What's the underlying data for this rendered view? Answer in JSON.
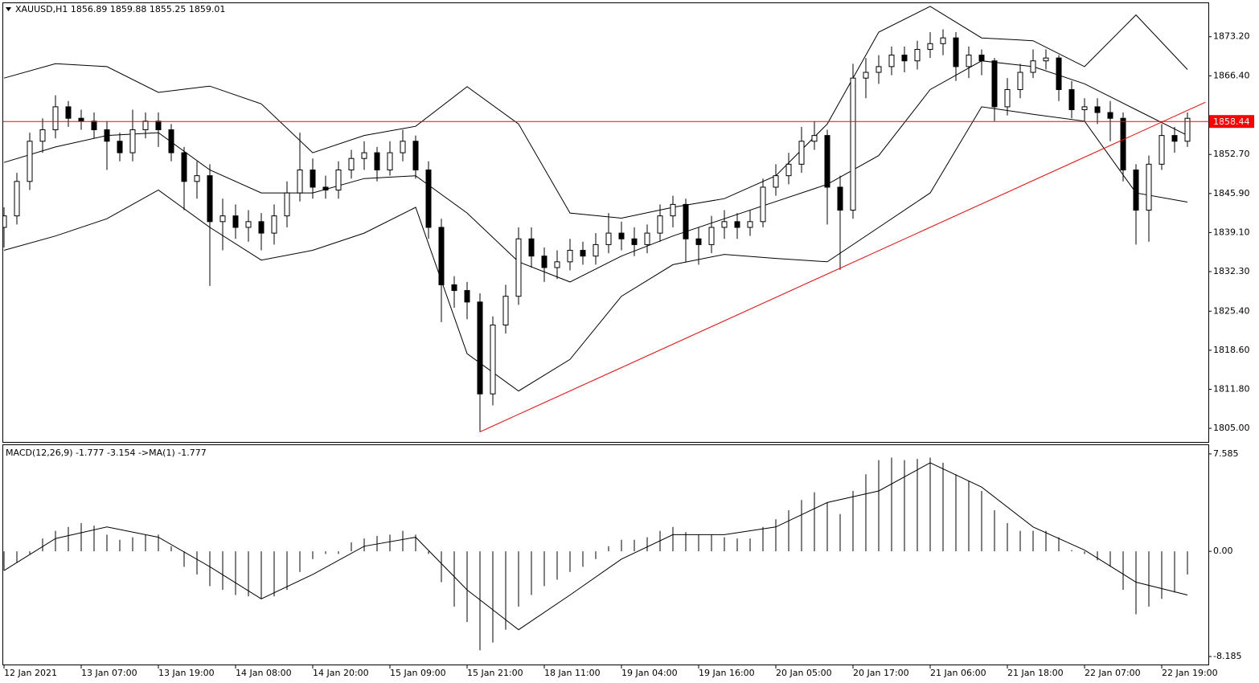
{
  "chart_data": [
    {
      "type": "candlestick",
      "title": "XAUUSD,H1  1856.89 1859.88 1855.25 1859.01",
      "open": [
        1840,
        1842,
        1848,
        1855,
        1857,
        1861,
        1859,
        1858.5,
        1857,
        1855,
        1853,
        1857,
        1858.5,
        1857,
        1853,
        1848,
        1849,
        1841,
        1842,
        1840,
        1841,
        1839,
        1842,
        1846,
        1850,
        1847,
        1846.5,
        1850,
        1852,
        1853,
        1850,
        1853,
        1855,
        1850,
        1840,
        1830,
        1829,
        1827,
        1811,
        1823,
        1828,
        1838,
        1835,
        1833,
        1834,
        1836,
        1835,
        1837,
        1839,
        1838,
        1837,
        1839,
        1842,
        1844,
        1838,
        1837,
        1840,
        1841,
        1840,
        1841,
        1847,
        1849,
        1851,
        1855,
        1856,
        1847,
        1843,
        1866,
        1867,
        1868,
        1870,
        1869,
        1871,
        1872,
        1873,
        1868,
        1870,
        1869,
        1861,
        1864,
        1867,
        1869,
        1869.5,
        1864,
        1860.5,
        1861,
        1860,
        1859,
        1850,
        1843,
        1851,
        1856,
        1855
      ],
      "high": [
        1843.5,
        1849.5,
        1856.5,
        1859,
        1863,
        1862,
        1860.5,
        1860,
        1858.5,
        1856.5,
        1860.5,
        1860,
        1860,
        1858,
        1854,
        1851.5,
        1851,
        1845,
        1844,
        1843,
        1842.5,
        1844,
        1848,
        1856.5,
        1852,
        1849,
        1851.5,
        1853.5,
        1855,
        1854,
        1855,
        1857,
        1856,
        1851.5,
        1841.5,
        1831.5,
        1830.5,
        1828.5,
        1824.5,
        1830,
        1840,
        1840,
        1836.5,
        1836,
        1838,
        1837.5,
        1839,
        1842.5,
        1841,
        1840,
        1840.5,
        1844,
        1845.5,
        1845,
        1840,
        1842,
        1843,
        1842.5,
        1843,
        1848.5,
        1851,
        1853,
        1857.5,
        1858.5,
        1857,
        1849,
        1868.5,
        1869.5,
        1870,
        1871.5,
        1871.5,
        1872.5,
        1874,
        1874.5,
        1874,
        1871.5,
        1871,
        1869.5,
        1866,
        1868.5,
        1871,
        1871,
        1870,
        1865.5,
        1862.5,
        1862.5,
        1862,
        1860,
        1851,
        1852.5,
        1858,
        1857.5,
        1860
      ],
      "low": [
        1836.5,
        1840.5,
        1846.5,
        1853,
        1855.5,
        1857.5,
        1857,
        1855.5,
        1850,
        1851.5,
        1851.5,
        1855.5,
        1854,
        1851.5,
        1843,
        1845,
        1829.8,
        1836,
        1838,
        1837.5,
        1836,
        1837,
        1840,
        1844.5,
        1845,
        1845,
        1845,
        1848.5,
        1850,
        1848,
        1849,
        1851.5,
        1848.5,
        1838,
        1823.5,
        1826,
        1824,
        1804.4,
        1809,
        1821.5,
        1826.5,
        1833,
        1830.5,
        1831,
        1832.5,
        1833.5,
        1833.5,
        1835.5,
        1836,
        1835,
        1835.5,
        1837.5,
        1840,
        1834,
        1833.5,
        1835.5,
        1838,
        1838,
        1838.5,
        1840,
        1845.5,
        1847.5,
        1849.5,
        1853.5,
        1840.5,
        1832.6,
        1841.5,
        1862.5,
        1865,
        1866.5,
        1867,
        1867.5,
        1869.5,
        1870,
        1865.5,
        1866,
        1866.5,
        1858.5,
        1859.5,
        1862.5,
        1866,
        1867.5,
        1862,
        1859,
        1858.5,
        1858,
        1855,
        1848,
        1837,
        1837.5,
        1850,
        1853,
        1854
      ],
      "close": [
        1842,
        1848,
        1855,
        1857,
        1861,
        1859,
        1858.5,
        1857,
        1855,
        1853,
        1857,
        1858.5,
        1857,
        1853,
        1848,
        1849,
        1841,
        1842,
        1840,
        1841,
        1839,
        1842,
        1846,
        1850,
        1847,
        1846.5,
        1850,
        1852,
        1853,
        1850,
        1853,
        1855,
        1850,
        1840,
        1830,
        1829,
        1827,
        1811,
        1823,
        1828,
        1838,
        1835,
        1833,
        1834,
        1836,
        1835,
        1837,
        1839,
        1838,
        1837,
        1839,
        1842,
        1844,
        1838,
        1837,
        1840,
        1841,
        1840,
        1841,
        1847,
        1849,
        1851,
        1855,
        1856,
        1847,
        1843,
        1866,
        1867,
        1868,
        1870,
        1869,
        1871,
        1872,
        1873,
        1868,
        1870,
        1869,
        1861,
        1864,
        1867,
        1869,
        1869.5,
        1864,
        1860.5,
        1861,
        1860,
        1859,
        1850,
        1843,
        1851,
        1856,
        1855,
        1859
      ],
      "up_color": "#ffffff",
      "down_color": "#000000",
      "bands_x": [
        0,
        4,
        8,
        12,
        16,
        20,
        24,
        28,
        32,
        36,
        40,
        44,
        48,
        52,
        56,
        60,
        64,
        68,
        72,
        76,
        80,
        84,
        88,
        92
      ],
      "band_upper": [
        1866,
        1868.5,
        1868,
        1863.5,
        1864.6,
        1861.5,
        1853,
        1856,
        1857.6,
        1864.5,
        1858,
        1842.5,
        1841.6,
        1843.5,
        1845,
        1849,
        1858,
        1874,
        1878.5,
        1873,
        1872.5,
        1868,
        1877,
        1867.5
      ],
      "band_middle": [
        1851.3,
        1854,
        1856,
        1856.5,
        1850,
        1846,
        1846,
        1848.5,
        1849,
        1842.5,
        1834,
        1830.5,
        1835,
        1838.5,
        1841.5,
        1844.5,
        1847.5,
        1852.5,
        1864,
        1869,
        1868,
        1865,
        1860.5,
        1856
      ],
      "band_lower": [
        1836,
        1838.5,
        1841.5,
        1846.5,
        1840,
        1834.3,
        1836,
        1839,
        1843.5,
        1818,
        1811.5,
        1817,
        1828,
        1833.5,
        1835.3,
        1834.6,
        1834,
        1840,
        1846,
        1861,
        1859.7,
        1858.5,
        1846,
        1844.4
      ],
      "bands_color": "#000000",
      "trendline": {
        "x": [
          37,
          93.4
        ],
        "values": [
          1804.4,
          1861.8
        ],
        "color": "#ff0000"
      },
      "last_price": 1858.44,
      "last_price_color": "#ff0000",
      "xlim": [
        -0.125,
        93.625
      ],
      "ylim": [
        1802.63,
        1879.18
      ],
      "yticks": [
        {
          "value": 1873.2,
          "label": "1873.20"
        },
        {
          "value": 1866.4,
          "label": "1866.40"
        },
        {
          "value": 1852.7,
          "label": "1852.70"
        },
        {
          "value": 1845.9,
          "label": "1845.90"
        },
        {
          "value": 1839.1,
          "label": "1839.10"
        },
        {
          "value": 1832.3,
          "label": "1832.30"
        },
        {
          "value": 1825.4,
          "label": "1825.40"
        },
        {
          "value": 1818.6,
          "label": "1818.60"
        },
        {
          "value": 1811.8,
          "label": "1811.80"
        },
        {
          "value": 1805,
          "label": "1805.00"
        }
      ],
      "xticks": [
        {
          "value": 0,
          "label": "12 Jan 2021"
        },
        {
          "value": 6,
          "label": "13 Jan 07:00"
        },
        {
          "value": 12,
          "label": "13 Jan 19:00"
        },
        {
          "value": 18,
          "label": "14 Jan 08:00"
        },
        {
          "value": 24,
          "label": "14 Jan 20:00"
        },
        {
          "value": 30,
          "label": "15 Jan 09:00"
        },
        {
          "value": 36,
          "label": "15 Jan 21:00"
        },
        {
          "value": 42,
          "label": "18 Jan 11:00"
        },
        {
          "value": 48,
          "label": "19 Jan 04:00"
        },
        {
          "value": 54,
          "label": "19 Jan 16:00"
        },
        {
          "value": 60,
          "label": "20 Jan 05:00"
        },
        {
          "value": 66,
          "label": "20 Jan 17:00"
        },
        {
          "value": 72,
          "label": "21 Jan 06:00"
        },
        {
          "value": 78,
          "label": "21 Jan 18:00"
        },
        {
          "value": 84,
          "label": "22 Jan 07:00"
        },
        {
          "value": 90,
          "label": "22 Jan 19:00"
        }
      ]
    },
    {
      "type": "macd",
      "title": "MACD(12,26,9) -1.777 -3.154  ->MA(1) -1.777",
      "values": [
        -1.5,
        -0.9,
        -0.2,
        1,
        1.6,
        1.9,
        2.2,
        2,
        1.3,
        0.9,
        1.1,
        1.3,
        1.3,
        0.4,
        -1.2,
        -1.8,
        -2.7,
        -3,
        -3.4,
        -3.5,
        -3.7,
        -3.5,
        -3,
        -1.6,
        -0.6,
        -0.2,
        -0.2,
        0.7,
        1,
        1.2,
        1.3,
        1.6,
        1.3,
        -0.2,
        -2.4,
        -4.3,
        -5.5,
        -7.7,
        -7.1,
        -6.1,
        -4.3,
        -3.4,
        -2.7,
        -2.2,
        -1.6,
        -1.2,
        -0.6,
        0.4,
        0.9,
        0.9,
        1.1,
        1.6,
        1.9,
        1.5,
        1.3,
        1.3,
        1.1,
        1,
        1,
        1.9,
        2.5,
        3.2,
        4,
        4.6,
        3.8,
        2.9,
        4.7,
        6,
        7.1,
        7.3,
        7.1,
        7.2,
        7.3,
        6.9,
        6,
        5.5,
        4.7,
        3.2,
        2.2,
        1.6,
        1.6,
        1.6,
        1.1,
        0.1,
        -0.2,
        -0.7,
        -1.2,
        -3,
        -4.9,
        -4.3,
        -3.7,
        -3.2,
        -1.8
      ],
      "color": "#000000",
      "signal_x": [
        0,
        4,
        8,
        12,
        16,
        20,
        24,
        28,
        32,
        36,
        40,
        44,
        48,
        52,
        56,
        60,
        64,
        68,
        72,
        76,
        80,
        84,
        88,
        92
      ],
      "signal": [
        -1.5,
        1,
        1.9,
        1.1,
        -1.2,
        -3.7,
        -1.8,
        0.4,
        1.1,
        -3,
        -6.1,
        -3.4,
        -0.6,
        1.3,
        1.3,
        1.9,
        3.8,
        4.7,
        6.9,
        5,
        1.9,
        0.1,
        -2.4,
        -3.4
      ],
      "signal_color": "#000000",
      "ylim": [
        -8.81,
        8.33
      ],
      "yticks": [
        7.585,
        {
          "value": 0,
          "label": "0.00"
        },
        -8.185
      ]
    }
  ]
}
